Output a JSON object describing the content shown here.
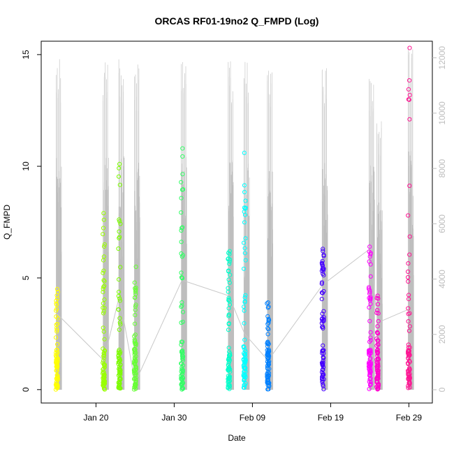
{
  "chart_data": {
    "type": "scatter",
    "title": "ORCAS RF01-19no2 Q_FMPD (Log)",
    "xlabel": "Date",
    "ylabel": "Q_FMPD",
    "xlim": [
      "2016-01-13",
      "2016-03-03"
    ],
    "ylim": [
      -0.6,
      15.6
    ],
    "y2lim": [
      -480,
      12600
    ],
    "xticks": [
      {
        "date": "2016-01-20",
        "label": "Jan 20"
      },
      {
        "date": "2016-01-30",
        "label": "Jan 30"
      },
      {
        "date": "2016-02-09",
        "label": "Feb 09"
      },
      {
        "date": "2016-02-19",
        "label": "Feb 19"
      },
      {
        "date": "2016-02-29",
        "label": "Feb 29"
      }
    ],
    "yticks": [
      "0",
      "5",
      "10",
      "15"
    ],
    "y2ticks": [
      "0",
      "2000",
      "4000",
      "6000",
      "8000",
      "10000",
      "12000"
    ],
    "grid": false,
    "legend": "none",
    "background_series": {
      "name": "",
      "color": "#bebebe"
    },
    "connector_color": "#c8c8c8",
    "series": [
      {
        "date": "2016-01-15",
        "color": "#ffff00",
        "max": 4.5,
        "mean": 3.4,
        "alt_max": 12000
      },
      {
        "date": "2016-01-21",
        "color": "#99ff00",
        "max": 7.9,
        "mean": 1.3,
        "alt_max": 12000
      },
      {
        "date": "2016-01-23",
        "color": "#7cfc00",
        "max": 10.1,
        "mean": 4.2,
        "alt_max": 12200
      },
      {
        "date": "2016-01-25",
        "color": "#66ff33",
        "max": 5.5,
        "mean": 0.3,
        "alt_max": 11800
      },
      {
        "date": "2016-01-31",
        "color": "#33ff66",
        "max": 10.8,
        "mean": 4.9,
        "alt_max": 12100
      },
      {
        "date": "2016-02-06",
        "color": "#00ffcc",
        "max": 6.2,
        "mean": 4.2,
        "alt_max": 11900
      },
      {
        "date": "2016-02-08",
        "color": "#00ffff",
        "max": 10.6,
        "mean": 2.5,
        "alt_max": 12000
      },
      {
        "date": "2016-02-11",
        "color": "#0080ff",
        "max": 3.9,
        "mean": 1.3,
        "alt_max": 11600
      },
      {
        "date": "2016-02-18",
        "color": "#4400ff",
        "max": 6.3,
        "mean": 4.7,
        "alt_max": 11900
      },
      {
        "date": "2016-02-24",
        "color": "#ff00ff",
        "max": 6.4,
        "mean": 6.3,
        "alt_max": 11600
      },
      {
        "date": "2016-02-25",
        "color": "#ff00cc",
        "max": 4.2,
        "mean": 3.0,
        "alt_max": 9800
      },
      {
        "date": "2016-02-29",
        "color": "#ff1493",
        "max": 15.3,
        "mean": 3.6,
        "alt_max": 12600
      }
    ]
  }
}
